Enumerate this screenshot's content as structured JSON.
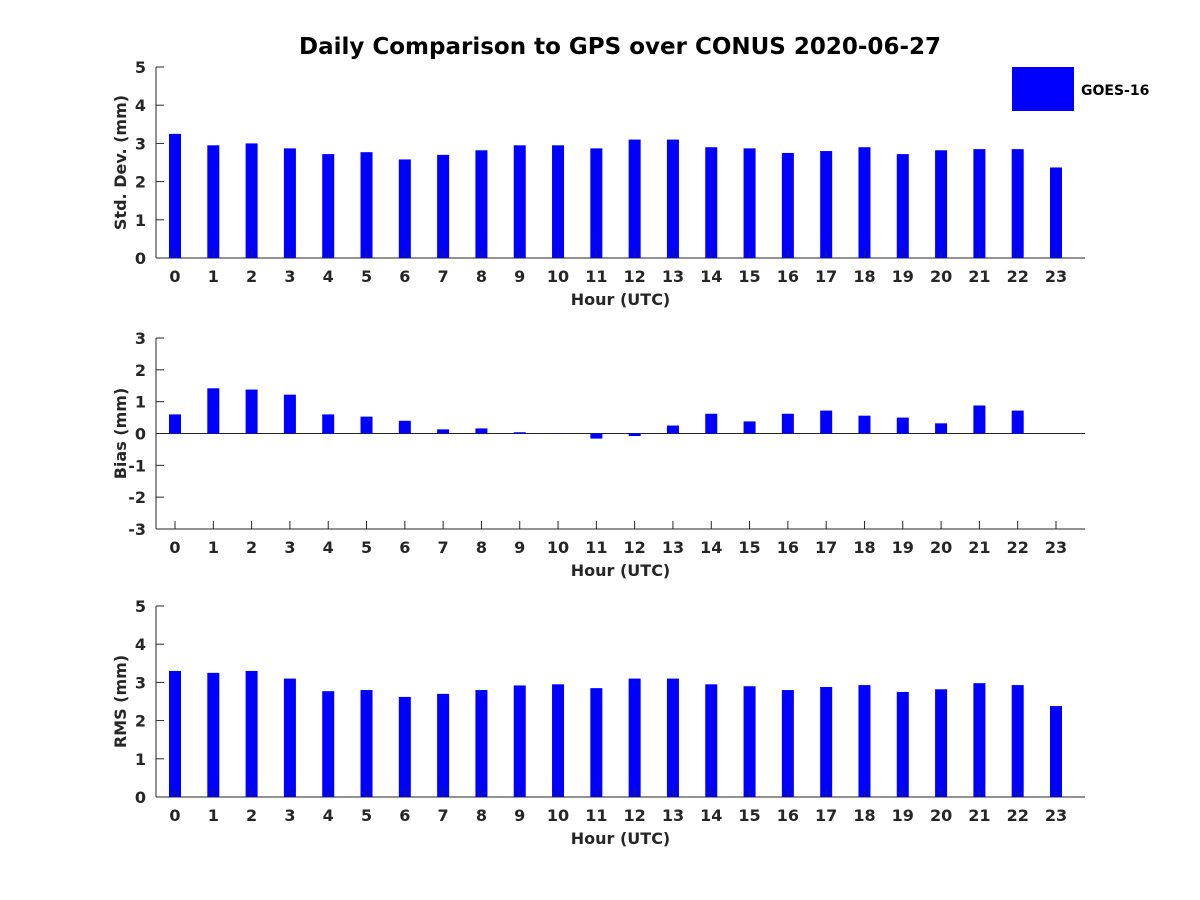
{
  "chart_data": {
    "title": "Daily Comparison to GPS over CONUS 2020-06-27",
    "bar_color": "#0000ff",
    "legend": {
      "label": "GOES-16",
      "color": "#0000ff",
      "placement": "top-right"
    },
    "panels": [
      {
        "name": "std-dev",
        "type": "bar",
        "ylabel": "Std. Dev. (mm)",
        "xlabel": "Hour (UTC)",
        "ylim": [
          0,
          5
        ],
        "yticks": [
          0,
          1,
          2,
          3,
          4,
          5
        ],
        "x": [
          0,
          1,
          2,
          3,
          4,
          5,
          6,
          7,
          8,
          9,
          10,
          11,
          12,
          13,
          14,
          15,
          16,
          17,
          18,
          19,
          20,
          21,
          22,
          23
        ],
        "values": [
          3.25,
          2.95,
          3.0,
          2.87,
          2.72,
          2.77,
          2.58,
          2.7,
          2.82,
          2.95,
          2.95,
          2.87,
          3.1,
          3.1,
          2.9,
          2.87,
          2.75,
          2.8,
          2.9,
          2.72,
          2.82,
          2.85,
          2.85,
          2.37
        ]
      },
      {
        "name": "bias",
        "type": "bar",
        "ylabel": "Bias (mm)",
        "xlabel": "Hour (UTC)",
        "ylim": [
          -3,
          3
        ],
        "yticks": [
          -3,
          -2,
          -1,
          0,
          1,
          2,
          3
        ],
        "zero_line": true,
        "x": [
          0,
          1,
          2,
          3,
          4,
          5,
          6,
          7,
          8,
          9,
          10,
          11,
          12,
          13,
          14,
          15,
          16,
          17,
          18,
          19,
          20,
          21,
          22,
          23
        ],
        "values": [
          0.6,
          1.42,
          1.38,
          1.22,
          0.6,
          0.53,
          0.4,
          0.13,
          0.16,
          0.04,
          0.01,
          -0.16,
          -0.08,
          0.25,
          0.62,
          0.38,
          0.62,
          0.72,
          0.56,
          0.5,
          0.32,
          0.88,
          0.72,
          0.0
        ]
      },
      {
        "name": "rms",
        "type": "bar",
        "ylabel": "RMS (mm)",
        "xlabel": "Hour (UTC)",
        "ylim": [
          0,
          5
        ],
        "yticks": [
          0,
          1,
          2,
          3,
          4,
          5
        ],
        "x": [
          0,
          1,
          2,
          3,
          4,
          5,
          6,
          7,
          8,
          9,
          10,
          11,
          12,
          13,
          14,
          15,
          16,
          17,
          18,
          19,
          20,
          21,
          22,
          23
        ],
        "values": [
          3.3,
          3.25,
          3.3,
          3.1,
          2.77,
          2.8,
          2.62,
          2.7,
          2.8,
          2.92,
          2.95,
          2.85,
          3.1,
          3.1,
          2.95,
          2.9,
          2.8,
          2.88,
          2.93,
          2.75,
          2.82,
          2.98,
          2.93,
          2.38
        ]
      }
    ]
  }
}
